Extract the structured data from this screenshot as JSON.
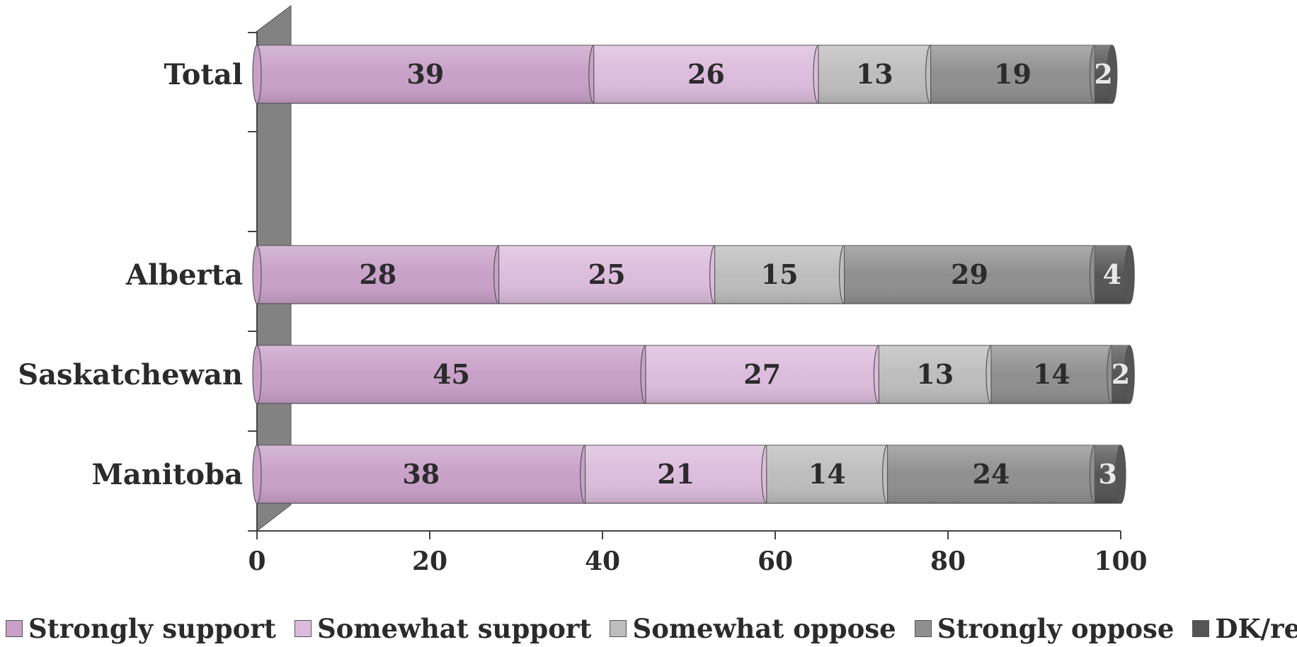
{
  "chart_data": {
    "type": "bar",
    "orientation": "horizontal",
    "stacked": true,
    "categories": [
      "Total",
      "Alberta",
      "Saskatchewan",
      "Manitoba"
    ],
    "series": [
      {
        "name": "Strongly support",
        "values": [
          39,
          28,
          45,
          38
        ],
        "color": "#c8a0c8"
      },
      {
        "name": "Somewhat support",
        "values": [
          26,
          25,
          27,
          21
        ],
        "color": "#dcbcdc"
      },
      {
        "name": "Somewhat oppose",
        "values": [
          13,
          15,
          13,
          14
        ],
        "color": "#bdbdbd"
      },
      {
        "name": "Strongly oppose",
        "values": [
          19,
          29,
          14,
          24
        ],
        "color": "#8f8f8f"
      },
      {
        "name": "DK/ref",
        "values": [
          2,
          4,
          2,
          3
        ],
        "color": "#555555"
      }
    ],
    "xlim": [
      0,
      100
    ],
    "xticks": [
      "0",
      "20",
      "40",
      "60",
      "80",
      "100"
    ],
    "grid": false,
    "legend": "bottom"
  }
}
